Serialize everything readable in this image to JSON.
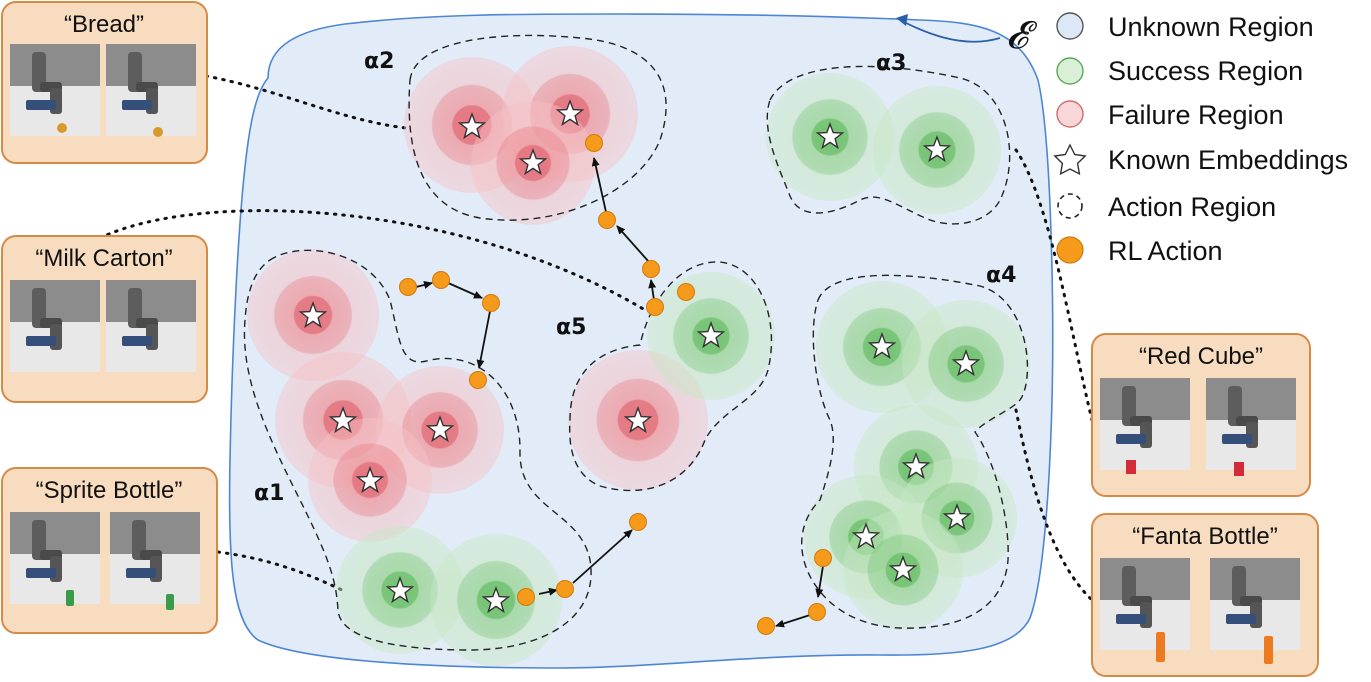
{
  "legend": {
    "symbol": "𝓔",
    "items": [
      {
        "key": "unknown",
        "label": "Unknown Region",
        "color": "#dde8f6"
      },
      {
        "key": "success",
        "label": "Success Region",
        "color": "#d9efd6"
      },
      {
        "key": "failure",
        "label": "Failure Region",
        "color": "#f7d7d7"
      },
      {
        "key": "known",
        "label": "Known Embeddings",
        "icon": "star-icon"
      },
      {
        "key": "action_region",
        "label": "Action Region",
        "icon": "dashed-circle-icon"
      },
      {
        "key": "rl_action",
        "label": "RL Action",
        "color": "#f59a1b"
      }
    ]
  },
  "region_labels": {
    "a1": "α1",
    "a2": "α2",
    "a3": "α3",
    "a4": "α4",
    "a5": "α5"
  },
  "cards": [
    {
      "id": "bread",
      "label": "“Bread”"
    },
    {
      "id": "milk",
      "label": "“Milk Carton”"
    },
    {
      "id": "sprite",
      "label": "“Sprite Bottle”"
    },
    {
      "id": "redcube",
      "label": "“Red Cube”"
    },
    {
      "id": "fanta",
      "label": "“Fanta Bottle”"
    }
  ],
  "colors": {
    "unknown_fill": "#e2ecf8",
    "unknown_stroke": "#4f86d4",
    "card_fill": "#f8dcc0",
    "card_stroke": "#d58a45",
    "failure": "#e4707a",
    "success": "#6fc16c",
    "rl_action": "#f59a1b"
  }
}
